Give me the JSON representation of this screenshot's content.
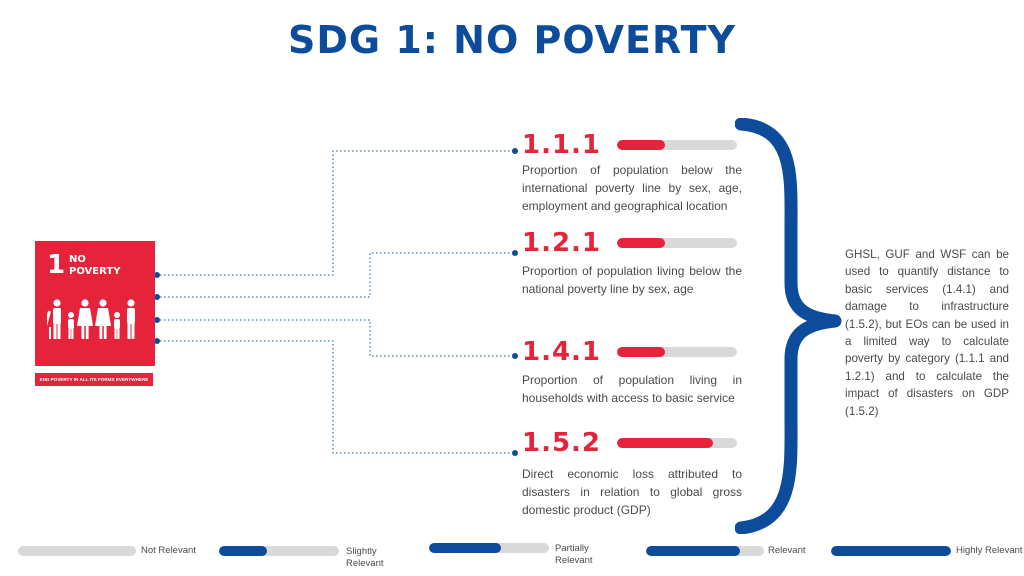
{
  "title": "SDG 1: NO POVERTY",
  "sdg": {
    "number": "1",
    "label": "NO POVERTY",
    "caption": "END POVERTY IN ALL ITS FORMS EVERYWHERE",
    "color": "#e5243b"
  },
  "indicators": [
    {
      "code": "1.1.1",
      "text": "Proportion of population below the international poverty line by sex, age, employment and geographical location",
      "relevance": 0.4
    },
    {
      "code": "1.2.1",
      "text": "Proportion of population living below the national poverty line by sex, age",
      "relevance": 0.4
    },
    {
      "code": "1.4.1",
      "text": "Proportion of population living in households with access to basic service",
      "relevance": 0.4
    },
    {
      "code": "1.5.2",
      "text": "Direct economic loss attributed to disasters in relation to global gross domestic product (GDP)",
      "relevance": 0.8
    }
  ],
  "summary": "GHSL, GUF and WSF can be used to quantify distance to basic services (1.4.1) and damage to infrastructure (1.5.2), but EOs can be used in a limited way to calculate poverty by category (1.1.1 and 1.2.1) and to calculate the impact of disasters on GDP (1.5.2)",
  "legend": [
    {
      "label": "Not Relevant",
      "level": 0
    },
    {
      "label": "Slightly Relevant",
      "level": 0.4
    },
    {
      "label": "Partially Relevant",
      "level": 0.6
    },
    {
      "label": "Relevant",
      "level": 0.8
    },
    {
      "label": "Highly Relevant",
      "level": 1
    }
  ],
  "colors": {
    "title": "#0d4c9a",
    "accent": "#e5243b",
    "track": "#d9d9d9",
    "legend_fill": "#0d4c9a"
  }
}
